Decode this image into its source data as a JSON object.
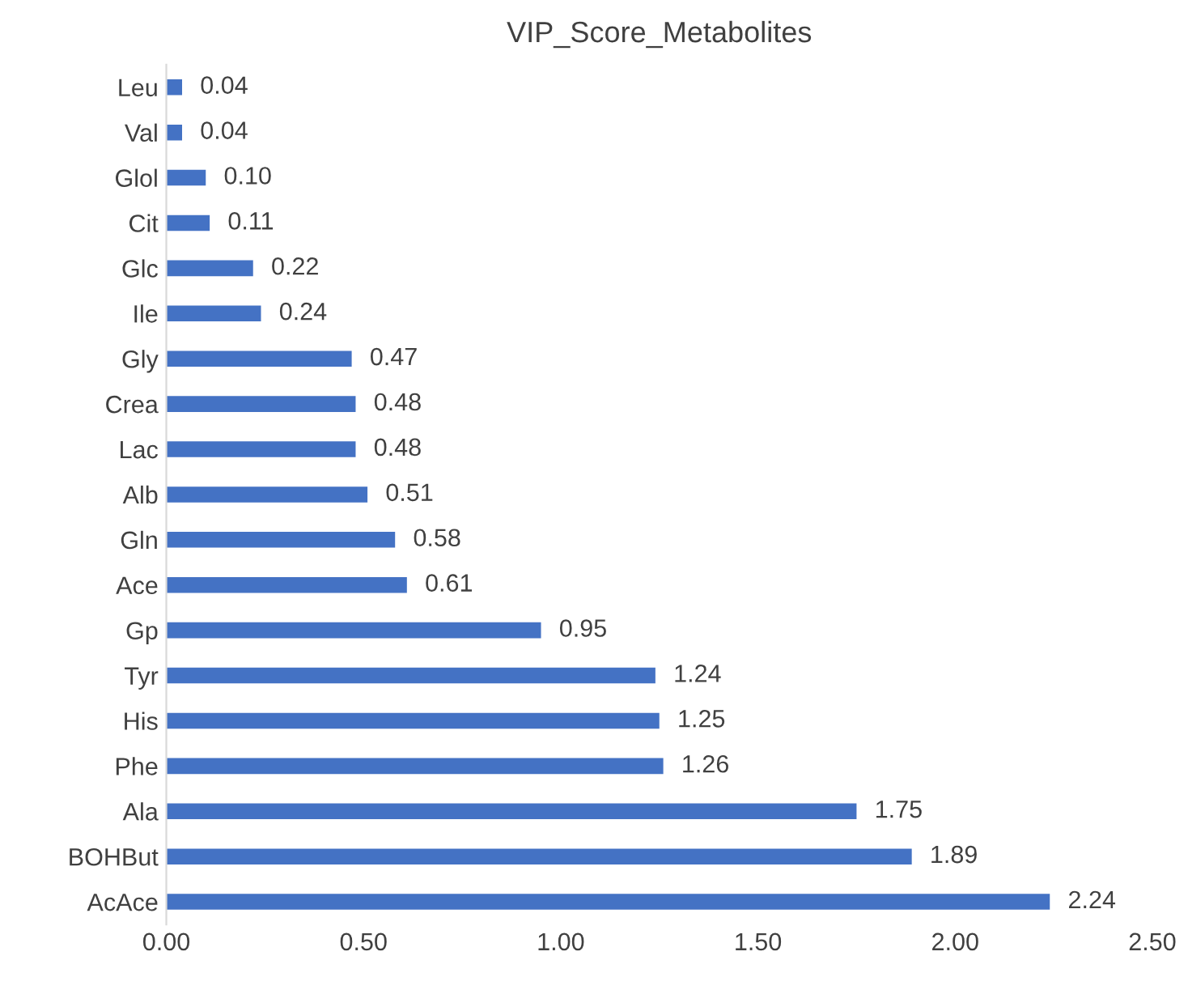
{
  "chart_data": {
    "type": "bar",
    "orientation": "horizontal",
    "title": "VIP_Score_Metabolites",
    "categories": [
      "Leu",
      "Val",
      "Glol",
      "Cit",
      "Glc",
      "Ile",
      "Gly",
      "Crea",
      "Lac",
      "Alb",
      "Gln",
      "Ace",
      "Gp",
      "Tyr",
      "His",
      "Phe",
      "Ala",
      "BOHBut",
      "AcAce"
    ],
    "values": [
      0.04,
      0.04,
      0.1,
      0.11,
      0.22,
      0.24,
      0.47,
      0.48,
      0.48,
      0.51,
      0.58,
      0.61,
      0.95,
      1.24,
      1.25,
      1.26,
      1.75,
      1.89,
      2.24
    ],
    "value_labels": [
      "0.04",
      "0.04",
      "0.10",
      "0.11",
      "0.22",
      "0.24",
      "0.47",
      "0.48",
      "0.48",
      "0.51",
      "0.58",
      "0.61",
      "0.95",
      "1.24",
      "1.25",
      "1.26",
      "1.75",
      "1.89",
      "2.24"
    ],
    "color": "#4472c4",
    "xlim": [
      0,
      2.5
    ],
    "xticks": [
      {
        "value": 0,
        "label": "0.00"
      },
      {
        "value": 0.5,
        "label": "0.50"
      },
      {
        "value": 1,
        "label": "1.00"
      },
      {
        "value": 1.5,
        "label": "1.50"
      },
      {
        "value": 2,
        "label": "2.00"
      },
      {
        "value": 2.5,
        "label": "2.50"
      }
    ],
    "grid": false,
    "legend": false
  }
}
